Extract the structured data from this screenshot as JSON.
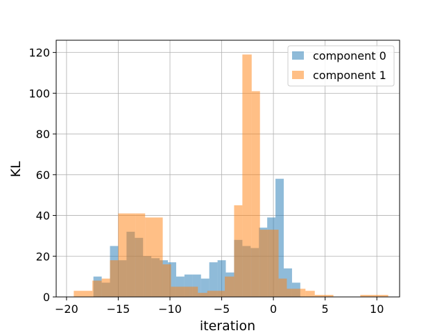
{
  "chart_data": {
    "type": "bar",
    "title": "",
    "xlabel": "iteration",
    "ylabel": "KL",
    "xlim": [
      -21,
      12.2
    ],
    "ylim": [
      0,
      126
    ],
    "xticks": [
      -20,
      -15,
      -10,
      -5,
      0,
      5,
      10
    ],
    "yticks": [
      0,
      20,
      40,
      60,
      80,
      100,
      120
    ],
    "grid": true,
    "legend_position": "top-right",
    "series": [
      {
        "name": "component 0",
        "color": "#1f77b4",
        "opacity": 0.5,
        "bins": [
          [
            -17.4,
            -16.6,
            10
          ],
          [
            -16.6,
            -15.8,
            7
          ],
          [
            -15.8,
            -15.0,
            25
          ],
          [
            -15.0,
            -14.2,
            18
          ],
          [
            -14.2,
            -13.4,
            32
          ],
          [
            -13.4,
            -12.6,
            29
          ],
          [
            -12.6,
            -11.8,
            20
          ],
          [
            -11.8,
            -11.0,
            19
          ],
          [
            -11.0,
            -10.2,
            18
          ],
          [
            -10.2,
            -9.4,
            17
          ],
          [
            -9.4,
            -8.6,
            10
          ],
          [
            -8.6,
            -7.8,
            11
          ],
          [
            -7.8,
            -7.0,
            11
          ],
          [
            -7.0,
            -6.2,
            9
          ],
          [
            -6.2,
            -5.4,
            17
          ],
          [
            -5.4,
            -4.6,
            18
          ],
          [
            -4.6,
            -3.8,
            12
          ],
          [
            -3.8,
            -3.0,
            28
          ],
          [
            -3.0,
            -2.2,
            25
          ],
          [
            -2.2,
            -1.4,
            24
          ],
          [
            -1.4,
            -0.6,
            34
          ],
          [
            -0.6,
            0.2,
            39
          ],
          [
            0.2,
            1.0,
            58
          ],
          [
            1.0,
            1.8,
            14
          ],
          [
            1.8,
            2.6,
            7
          ],
          [
            2.6,
            3.4,
            0
          ]
        ]
      },
      {
        "name": "component 1",
        "color": "#ff7f0e",
        "opacity": 0.5,
        "bins": [
          [
            -19.3,
            -17.5,
            3
          ],
          [
            -17.5,
            -16.6,
            8
          ],
          [
            -16.6,
            -15.8,
            9
          ],
          [
            -15.8,
            -15.0,
            18
          ],
          [
            -15.0,
            -13.3,
            41
          ],
          [
            -13.3,
            -12.4,
            41
          ],
          [
            -12.4,
            -10.7,
            39
          ],
          [
            -10.7,
            -9.9,
            16
          ],
          [
            -9.9,
            -8.1,
            5
          ],
          [
            -8.1,
            -7.3,
            5
          ],
          [
            -7.3,
            -6.4,
            2
          ],
          [
            -6.4,
            -5.5,
            3
          ],
          [
            -5.5,
            -4.7,
            3
          ],
          [
            -4.7,
            -3.8,
            10
          ],
          [
            -3.8,
            -3.0,
            45
          ],
          [
            -3.0,
            -2.1,
            119
          ],
          [
            -2.1,
            -1.3,
            101
          ],
          [
            -1.3,
            -0.4,
            33
          ],
          [
            -0.4,
            0.5,
            33
          ],
          [
            0.5,
            1.3,
            9
          ],
          [
            1.3,
            2.2,
            4
          ],
          [
            2.2,
            3.1,
            4
          ],
          [
            3.1,
            4.0,
            3
          ],
          [
            4.0,
            5.8,
            1
          ],
          [
            5.8,
            8.4,
            0
          ],
          [
            8.4,
            11.1,
            1
          ]
        ]
      }
    ]
  }
}
